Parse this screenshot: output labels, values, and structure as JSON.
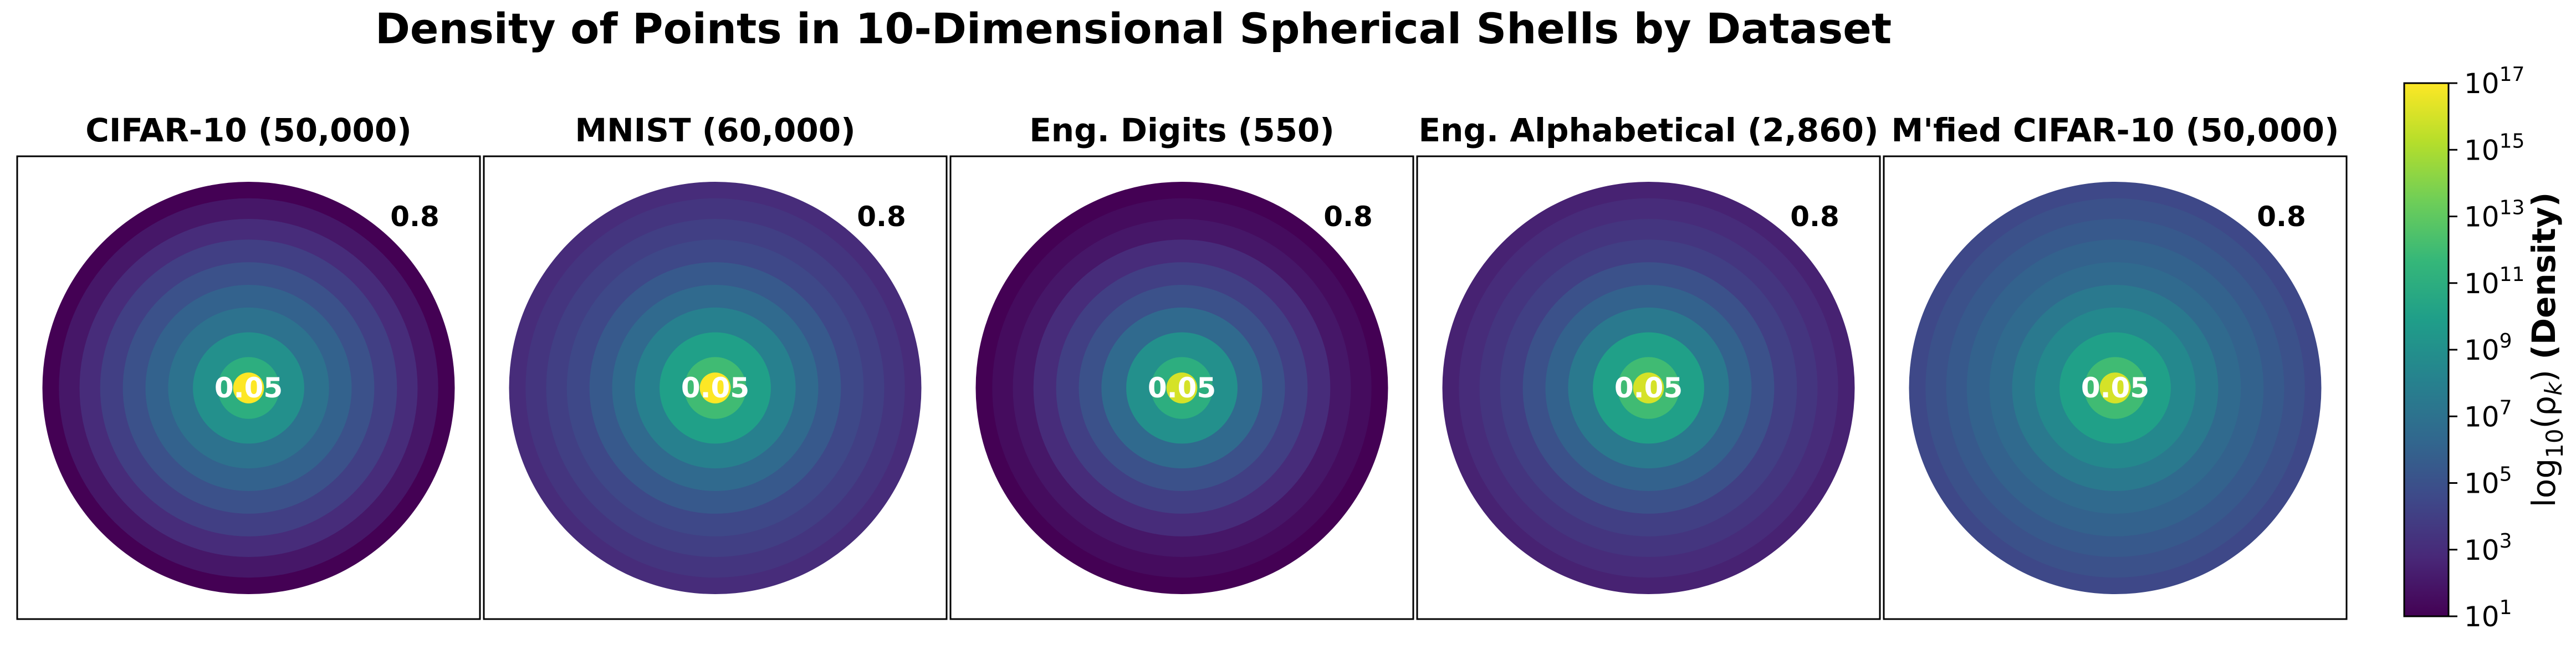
{
  "figure": {
    "title": "Density of Points in 10-Dimensional Spherical Shells by Dataset"
  },
  "colorbar": {
    "label_prefix": "log",
    "label_sub": "10",
    "label_mid": "(ρ",
    "label_k": "k",
    "label_close": ")",
    "label_bold": "(Density)",
    "scale": "log",
    "range": [
      1,
      17
    ],
    "ticks": [
      {
        "base": "10",
        "exp": "17",
        "value": 17
      },
      {
        "base": "10",
        "exp": "15",
        "value": 15
      },
      {
        "base": "10",
        "exp": "13",
        "value": 13
      },
      {
        "base": "10",
        "exp": "11",
        "value": 11
      },
      {
        "base": "10",
        "exp": "9",
        "value": 9
      },
      {
        "base": "10",
        "exp": "7",
        "value": 7
      },
      {
        "base": "10",
        "exp": "5",
        "value": 5
      },
      {
        "base": "10",
        "exp": "3",
        "value": 3
      },
      {
        "base": "10",
        "exp": "1",
        "value": 1
      }
    ],
    "colormap": [
      "#440154",
      "#482878",
      "#3e4989",
      "#31688e",
      "#26828e",
      "#1f9e89",
      "#35b779",
      "#6ece58",
      "#b5de2b",
      "#fde725"
    ]
  },
  "chart_data": [
    {
      "type": "heatmap",
      "title": "CIFAR-10 (50,000)",
      "outer_radius_label": "0.8",
      "inner_radius_label": "0.05",
      "shell_radii": [
        0.05,
        0.1,
        0.2,
        0.3,
        0.4,
        0.5,
        0.6,
        0.7,
        0.8
      ],
      "log10_density": [
        17,
        11,
        9,
        7,
        6,
        5,
        4,
        3,
        2,
        1
      ]
    },
    {
      "type": "heatmap",
      "title": "MNIST (60,000)",
      "outer_radius_label": "0.8",
      "inner_radius_label": "0.05",
      "shell_radii": [
        0.05,
        0.1,
        0.2,
        0.3,
        0.4,
        0.5,
        0.6,
        0.7,
        0.8
      ],
      "log10_density": [
        17,
        12,
        10,
        8,
        6.5,
        5.5,
        4.5,
        4,
        3.5,
        3
      ]
    },
    {
      "type": "heatmap",
      "title": "Eng. Digits (550)",
      "outer_radius_label": "0.8",
      "inner_radius_label": "0.05",
      "shell_radii": [
        0.05,
        0.1,
        0.2,
        0.3,
        0.4,
        0.5,
        0.6,
        0.7,
        0.8
      ],
      "log10_density": [
        16,
        11,
        9,
        6.5,
        5,
        4,
        3,
        2,
        1.5,
        1
      ]
    },
    {
      "type": "heatmap",
      "title": "Eng. Alphabetical (2,860)",
      "outer_radius_label": "0.8",
      "inner_radius_label": "0.05",
      "shell_radii": [
        0.05,
        0.1,
        0.2,
        0.3,
        0.4,
        0.5,
        0.6,
        0.7,
        0.8
      ],
      "log10_density": [
        16,
        12,
        10,
        7.5,
        6,
        5,
        4,
        3.5,
        3,
        2.5
      ]
    },
    {
      "type": "heatmap",
      "title": "M'fied CIFAR-10 (50,000)",
      "outer_radius_label": "0.8",
      "inner_radius_label": "0.05",
      "shell_radii": [
        0.05,
        0.1,
        0.2,
        0.3,
        0.4,
        0.5,
        0.6,
        0.7,
        0.8
      ],
      "log10_density": [
        16,
        12,
        10,
        8.5,
        7.5,
        6.5,
        6,
        5.5,
        5,
        4.5
      ]
    }
  ]
}
